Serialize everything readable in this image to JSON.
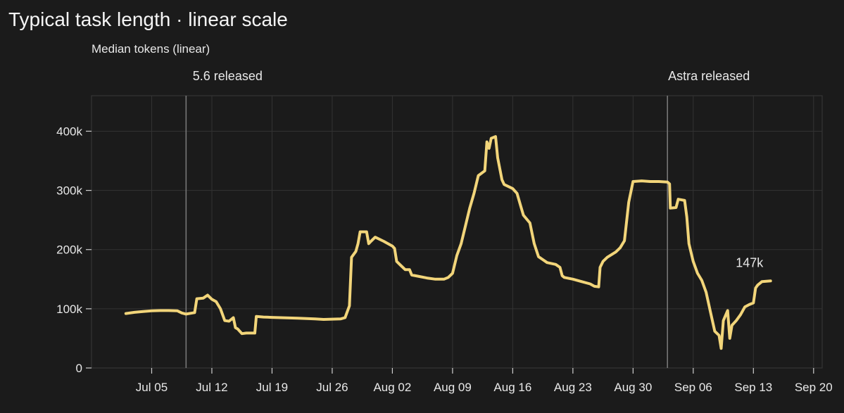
{
  "title": "Typical task length · linear scale",
  "chart_data": {
    "type": "line",
    "title": "Typical task length · linear scale",
    "ylabel": "Median tokens (linear)",
    "xlabel": "",
    "ylim": [
      0,
      460000
    ],
    "xlim": [
      "2025-06-28",
      "2025-09-21"
    ],
    "y_ticks": [
      {
        "value": 0,
        "label": "0"
      },
      {
        "value": 100000,
        "label": "100k"
      },
      {
        "value": 200000,
        "label": "200k"
      },
      {
        "value": 300000,
        "label": "300k"
      },
      {
        "value": 400000,
        "label": "400k"
      }
    ],
    "x_ticks": [
      {
        "value": "2025-07-05",
        "label": "Jul 05"
      },
      {
        "value": "2025-07-12",
        "label": "Jul 12"
      },
      {
        "value": "2025-07-19",
        "label": "Jul 19"
      },
      {
        "value": "2025-07-26",
        "label": "Jul 26"
      },
      {
        "value": "2025-08-02",
        "label": "Aug 02"
      },
      {
        "value": "2025-08-09",
        "label": "Aug 09"
      },
      {
        "value": "2025-08-16",
        "label": "Aug 16"
      },
      {
        "value": "2025-08-23",
        "label": "Aug 23"
      },
      {
        "value": "2025-08-30",
        "label": "Aug 30"
      },
      {
        "value": "2025-09-06",
        "label": "Sep 06"
      },
      {
        "value": "2025-09-13",
        "label": "Sep 13"
      },
      {
        "value": "2025-09-20",
        "label": "Sep 20"
      }
    ],
    "grid": true,
    "colors": {
      "line": "#f2d57a",
      "background": "#1b1b1b",
      "grid": "#333333",
      "frame": "#3a3a3a",
      "event_line": "#777777"
    },
    "annotations": [
      {
        "date": "2025-07-09",
        "label": "5.6 released"
      },
      {
        "date": "2025-09-03",
        "label": "Astra released"
      }
    ],
    "end_label": "147k",
    "series": [
      {
        "points": [
          [
            "2025-07-02",
            92000
          ],
          [
            "2025-07-03",
            94000
          ],
          [
            "2025-07-04",
            95500
          ],
          [
            "2025-07-05",
            96500
          ],
          [
            "2025-07-06",
            97000
          ],
          [
            "2025-07-07",
            97000
          ],
          [
            "2025-07-08",
            96500
          ],
          [
            "2025-07-08T12",
            93000
          ],
          [
            "2025-07-09",
            91000
          ],
          [
            "2025-07-09T18",
            93000
          ],
          [
            "2025-07-10",
            93500
          ],
          [
            "2025-07-10T06",
            117000
          ],
          [
            "2025-07-11",
            118000
          ],
          [
            "2025-07-11T12",
            123000
          ],
          [
            "2025-07-12",
            116000
          ],
          [
            "2025-07-12T12",
            112000
          ],
          [
            "2025-07-13",
            100000
          ],
          [
            "2025-07-13T12",
            80000
          ],
          [
            "2025-07-14",
            79000
          ],
          [
            "2025-07-14T12",
            85000
          ],
          [
            "2025-07-14T18",
            68000
          ],
          [
            "2025-07-15",
            66000
          ],
          [
            "2025-07-15T12",
            58000
          ],
          [
            "2025-07-16",
            59000
          ],
          [
            "2025-07-17",
            59000
          ],
          [
            "2025-07-17T04",
            87000
          ],
          [
            "2025-07-18",
            86000
          ],
          [
            "2025-07-19",
            85500
          ],
          [
            "2025-07-20",
            85000
          ],
          [
            "2025-07-22",
            84000
          ],
          [
            "2025-07-24",
            83000
          ],
          [
            "2025-07-25",
            82000
          ],
          [
            "2025-07-26",
            82500
          ],
          [
            "2025-07-27",
            83000
          ],
          [
            "2025-07-27T12",
            85000
          ],
          [
            "2025-07-28",
            105000
          ],
          [
            "2025-07-28T06",
            187000
          ],
          [
            "2025-07-28T18",
            197000
          ],
          [
            "2025-07-29",
            210000
          ],
          [
            "2025-07-29T06",
            230000
          ],
          [
            "2025-07-30",
            230000
          ],
          [
            "2025-07-30T06",
            210000
          ],
          [
            "2025-07-30T12",
            214000
          ],
          [
            "2025-07-31",
            221000
          ],
          [
            "2025-08-01",
            214000
          ],
          [
            "2025-08-02",
            206000
          ],
          [
            "2025-08-02T06",
            202000
          ],
          [
            "2025-08-02T12",
            180000
          ],
          [
            "2025-08-03",
            173000
          ],
          [
            "2025-08-03T12",
            166000
          ],
          [
            "2025-08-04",
            166000
          ],
          [
            "2025-08-04T06",
            157000
          ],
          [
            "2025-08-05",
            155000
          ],
          [
            "2025-08-06",
            152000
          ],
          [
            "2025-08-07",
            150000
          ],
          [
            "2025-08-08",
            150000
          ],
          [
            "2025-08-08T12",
            153000
          ],
          [
            "2025-08-09",
            160000
          ],
          [
            "2025-08-09T12",
            190000
          ],
          [
            "2025-08-10",
            210000
          ],
          [
            "2025-08-10T12",
            240000
          ],
          [
            "2025-08-11",
            270000
          ],
          [
            "2025-08-11T12",
            295000
          ],
          [
            "2025-08-12",
            325000
          ],
          [
            "2025-08-12T18",
            333000
          ],
          [
            "2025-08-13",
            382000
          ],
          [
            "2025-08-13T06",
            371000
          ],
          [
            "2025-08-13T12",
            388000
          ],
          [
            "2025-08-14",
            391000
          ],
          [
            "2025-08-14T06",
            355000
          ],
          [
            "2025-08-14T18",
            318000
          ],
          [
            "2025-08-15",
            310000
          ],
          [
            "2025-08-16",
            303000
          ],
          [
            "2025-08-16T12",
            295000
          ],
          [
            "2025-08-17",
            270000
          ],
          [
            "2025-08-17T06",
            258000
          ],
          [
            "2025-08-18",
            245000
          ],
          [
            "2025-08-18T12",
            210000
          ],
          [
            "2025-08-19",
            188000
          ],
          [
            "2025-08-19T12",
            183000
          ],
          [
            "2025-08-20",
            178000
          ],
          [
            "2025-08-21",
            175000
          ],
          [
            "2025-08-21T12",
            170000
          ],
          [
            "2025-08-21T18",
            156000
          ],
          [
            "2025-08-22",
            153000
          ],
          [
            "2025-08-23",
            150000
          ],
          [
            "2025-08-24",
            146000
          ],
          [
            "2025-08-25",
            142000
          ],
          [
            "2025-08-25T12",
            138000
          ],
          [
            "2025-08-26",
            137000
          ],
          [
            "2025-08-26T04",
            170000
          ],
          [
            "2025-08-26T12",
            180000
          ],
          [
            "2025-08-27",
            187000
          ],
          [
            "2025-08-28",
            196000
          ],
          [
            "2025-08-28T12",
            203000
          ],
          [
            "2025-08-29",
            215000
          ],
          [
            "2025-08-29T12",
            280000
          ],
          [
            "2025-08-30",
            315000
          ],
          [
            "2025-08-31",
            316000
          ],
          [
            "2025-09-01",
            315000
          ],
          [
            "2025-09-02",
            315000
          ],
          [
            "2025-09-03",
            314000
          ],
          [
            "2025-09-03T06",
            311000
          ],
          [
            "2025-09-03T08",
            270000
          ],
          [
            "2025-09-04",
            271000
          ],
          [
            "2025-09-04T06",
            285000
          ],
          [
            "2025-09-05",
            283000
          ],
          [
            "2025-09-05T06",
            255000
          ],
          [
            "2025-09-05T12",
            210000
          ],
          [
            "2025-09-06",
            180000
          ],
          [
            "2025-09-06T12",
            160000
          ],
          [
            "2025-09-07",
            148000
          ],
          [
            "2025-09-07T12",
            128000
          ],
          [
            "2025-09-08",
            95000
          ],
          [
            "2025-09-08T12",
            62000
          ],
          [
            "2025-09-09",
            55000
          ],
          [
            "2025-09-09T06",
            33000
          ],
          [
            "2025-09-09T12",
            80000
          ],
          [
            "2025-09-10",
            97000
          ],
          [
            "2025-09-10T06",
            50000
          ],
          [
            "2025-09-10T12",
            72000
          ],
          [
            "2025-09-11",
            80000
          ],
          [
            "2025-09-11T12",
            90000
          ],
          [
            "2025-09-12",
            103000
          ],
          [
            "2025-09-12T12",
            107000
          ],
          [
            "2025-09-13",
            110000
          ],
          [
            "2025-09-13T06",
            135000
          ],
          [
            "2025-09-13T12",
            140000
          ],
          [
            "2025-09-14",
            146000
          ],
          [
            "2025-09-15",
            147000
          ]
        ]
      }
    ]
  }
}
